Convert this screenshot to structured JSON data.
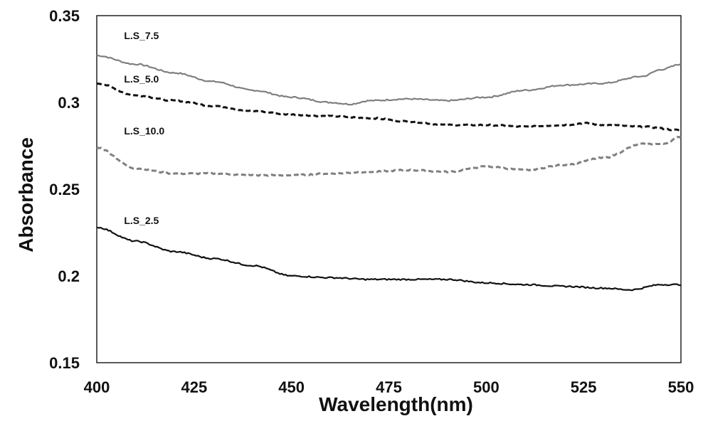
{
  "chart_data": {
    "type": "line",
    "title": "",
    "xlabel": "Wavelength(nm)",
    "ylabel": "Absorbance",
    "xlim": [
      400,
      550
    ],
    "ylim": [
      0.15,
      0.35
    ],
    "xticks": [
      "400",
      "425",
      "450",
      "475",
      "500",
      "525",
      "550"
    ],
    "yticks": [
      "0.15",
      "0.2",
      "0.25",
      "0.3",
      "0.35"
    ],
    "grid": false,
    "legend": "none",
    "series": [
      {
        "name": "L.S_7.5",
        "color": "#7f7f7f",
        "style": "solid",
        "x": [
          400,
          410,
          420,
          430,
          440,
          450,
          460,
          465,
          470,
          480,
          490,
          500,
          510,
          520,
          530,
          540,
          545,
          550
        ],
        "y": [
          0.327,
          0.322,
          0.317,
          0.312,
          0.307,
          0.303,
          0.3,
          0.299,
          0.301,
          0.302,
          0.301,
          0.303,
          0.307,
          0.31,
          0.311,
          0.315,
          0.319,
          0.322
        ]
      },
      {
        "name": "L.S_5.0",
        "color": "#111111",
        "style": "dashed",
        "x": [
          400,
          410,
          420,
          430,
          440,
          450,
          460,
          470,
          480,
          490,
          500,
          510,
          520,
          525,
          530,
          540,
          550
        ],
        "y": [
          0.311,
          0.304,
          0.301,
          0.298,
          0.295,
          0.293,
          0.292,
          0.291,
          0.289,
          0.287,
          0.287,
          0.286,
          0.287,
          0.288,
          0.287,
          0.286,
          0.284
        ]
      },
      {
        "name": "L.S_10.0",
        "color": "#7f7f7f",
        "style": "dashed",
        "x": [
          400,
          410,
          420,
          430,
          440,
          450,
          460,
          470,
          480,
          490,
          500,
          510,
          520,
          530,
          540,
          545,
          550
        ],
        "y": [
          0.274,
          0.262,
          0.259,
          0.259,
          0.258,
          0.258,
          0.259,
          0.26,
          0.261,
          0.26,
          0.263,
          0.261,
          0.264,
          0.268,
          0.276,
          0.276,
          0.28
        ]
      },
      {
        "name": "L.S_2.5",
        "color": "#111111",
        "style": "solid",
        "x": [
          400,
          410,
          420,
          430,
          440,
          450,
          460,
          470,
          480,
          490,
          500,
          510,
          520,
          530,
          537,
          545,
          550
        ],
        "y": [
          0.228,
          0.22,
          0.214,
          0.21,
          0.206,
          0.2,
          0.199,
          0.198,
          0.198,
          0.198,
          0.196,
          0.195,
          0.194,
          0.193,
          0.192,
          0.195,
          0.195
        ]
      }
    ],
    "annotations": [
      {
        "text": "L.S_7.5",
        "x": 407,
        "y": 0.3365
      },
      {
        "text": "L.S_5.0",
        "x": 407,
        "y": 0.3115
      },
      {
        "text": "L.S_10.0",
        "x": 407,
        "y": 0.2815
      },
      {
        "text": "L.S_2.5",
        "x": 407,
        "y": 0.23
      }
    ]
  }
}
